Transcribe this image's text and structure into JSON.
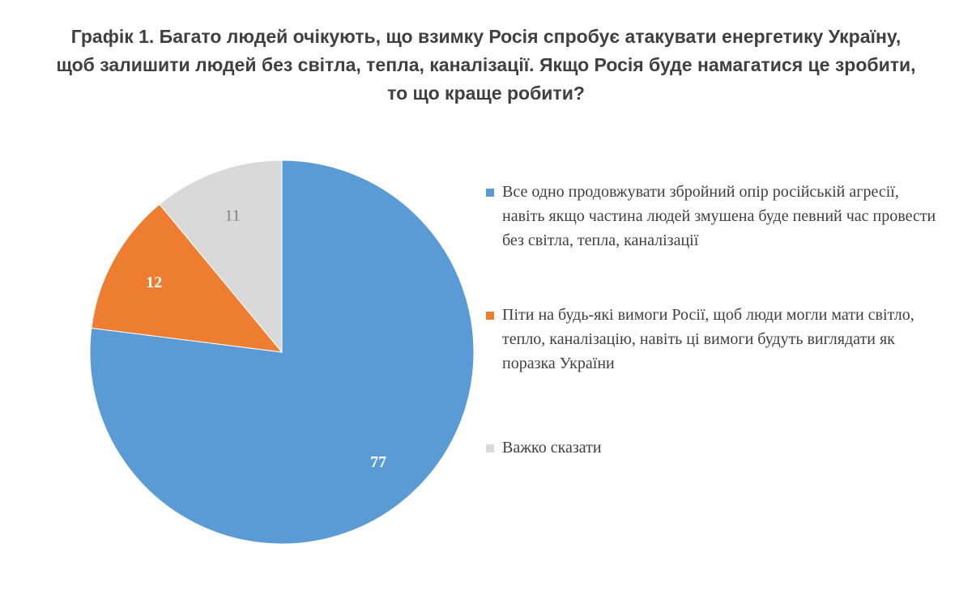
{
  "chart_data": {
    "type": "pie",
    "title_lines": [
      "Графік 1. Багато людей очікують, що взимку Росія спробує атакувати енергетику Україну,",
      "щоб залишити людей без світла, тепла, каналізації. Якщо Росія буде намагатися це зробити,",
      "то що краще робити?"
    ],
    "slices": [
      {
        "label": "Все одно продовжувати збройний опір російській агресії, навіть якщо частина людей змушена буде певний час провести без світла, тепла, каналізації",
        "value": 77,
        "color": "#5B9BD5",
        "label_color": "#ffffff"
      },
      {
        "label": "Піти на будь-які вимоги Росії, щоб люди могли мати світло, тепло, каналізацію, навіть ці вимоги будуть виглядати як поразка України",
        "value": 12,
        "color": "#ED7D31",
        "label_color": "#ffffff"
      },
      {
        "label": "Важко сказати",
        "value": 11,
        "color": "#D9D9D9",
        "label_color": "#808080"
      }
    ],
    "legend_position": "right",
    "start": "12 o'clock",
    "direction": "clockwise"
  }
}
